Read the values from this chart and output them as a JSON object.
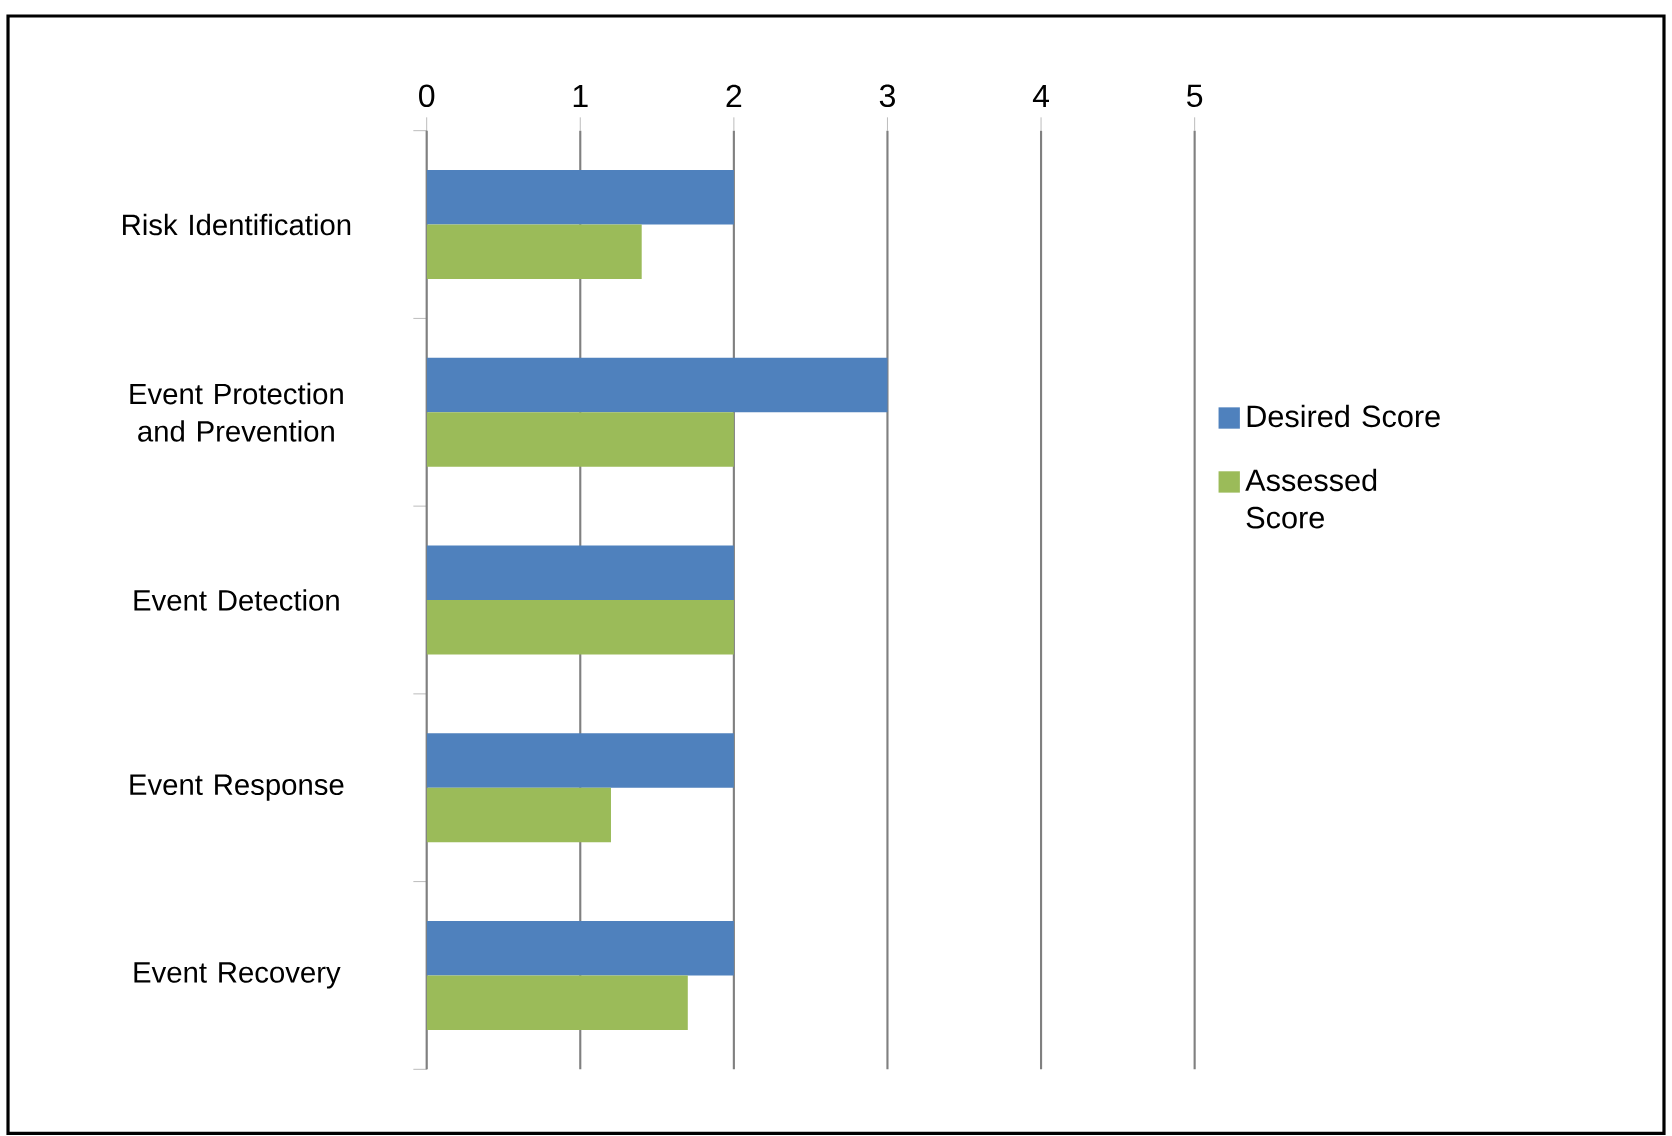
{
  "chart_data": {
    "type": "bar",
    "orientation": "horizontal",
    "categories": [
      "Risk Identification",
      "Event Protection and Prevention",
      "Event Detection",
      "Event Response",
      "Event Recovery"
    ],
    "series": [
      {
        "name": "Desired Score",
        "color": "#4f81bd",
        "values": [
          2,
          3,
          2,
          2,
          2
        ]
      },
      {
        "name": "Assessed Score",
        "color": "#9bbb59",
        "values": [
          1.4,
          2,
          2,
          1.2,
          1.7
        ]
      }
    ],
    "xlim": [
      0,
      5
    ],
    "xticks": [
      0,
      1,
      2,
      3,
      4,
      5
    ],
    "grid": "x",
    "legend": "right"
  }
}
